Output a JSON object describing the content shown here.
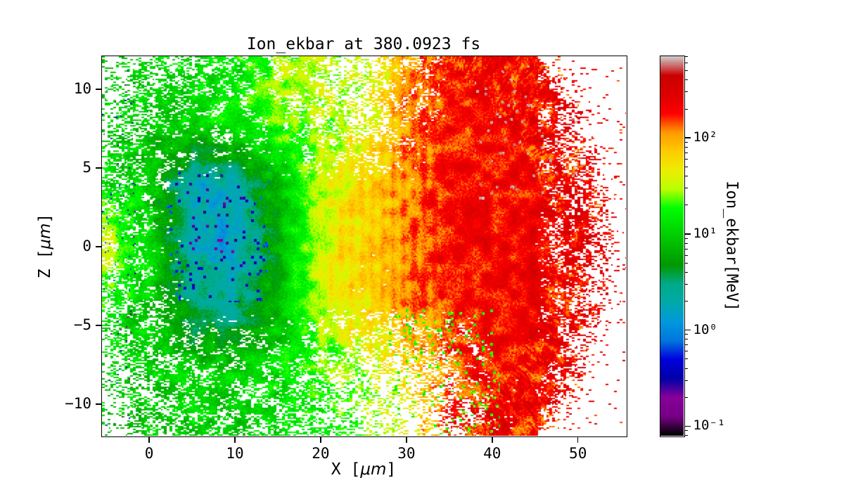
{
  "labels": {
    "xlabel_pre": "X [",
    "xlabel_unit": "μm",
    "xlabel_post": "]",
    "ylabel_pre": "Z [",
    "ylabel_unit": "μm",
    "ylabel_post": "]"
  },
  "chart_data": {
    "type": "heatmap",
    "title": "Ion_ekbar at 380.0923 fs",
    "xlabel": "X [μm]",
    "ylabel": "Z [μm]",
    "x_range": [
      -5.5,
      55.6
    ],
    "z_range": [
      -12.0,
      12.1
    ],
    "x_ticks": [
      0,
      10,
      20,
      30,
      40,
      50
    ],
    "x_tick_labels": [
      "0",
      "10",
      "20",
      "30",
      "40",
      "50"
    ],
    "z_ticks": [
      10,
      5,
      0,
      -5,
      -10
    ],
    "z_tick_labels": [
      "10",
      "5",
      "0",
      "−5",
      "−10"
    ],
    "grid_on": false,
    "colorbar": {
      "label": "Ion_ekbar[MeV]",
      "scale": "log",
      "vlog_min": -1.1,
      "vlog_max": 2.85,
      "major_ticks": [
        {
          "logv": 2,
          "label": "10²"
        },
        {
          "logv": 1,
          "label": "10¹"
        },
        {
          "logv": 0,
          "label": "10⁰"
        },
        {
          "logv": -1,
          "label": "10⁻¹"
        }
      ],
      "colormap": "nipy_spectral",
      "stops": [
        [
          0.0,
          0.0,
          0.0,
          0.0
        ],
        [
          0.05,
          0.4667,
          0.0,
          0.5333
        ],
        [
          0.1,
          0.5333,
          0.0,
          0.6
        ],
        [
          0.15,
          0.0,
          0.0,
          0.6667
        ],
        [
          0.2,
          0.0,
          0.0,
          0.8667
        ],
        [
          0.25,
          0.0,
          0.4667,
          0.8667
        ],
        [
          0.3,
          0.0,
          0.6,
          0.8667
        ],
        [
          0.35,
          0.0,
          0.6667,
          0.6667
        ],
        [
          0.4,
          0.0,
          0.6667,
          0.5333
        ],
        [
          0.45,
          0.0,
          0.6,
          0.0
        ],
        [
          0.5,
          0.0,
          0.7333,
          0.0
        ],
        [
          0.55,
          0.0,
          0.8667,
          0.0
        ],
        [
          0.6,
          0.0,
          1.0,
          0.0
        ],
        [
          0.65,
          0.7333,
          1.0,
          0.0
        ],
        [
          0.7,
          0.9333,
          0.9333,
          0.0
        ],
        [
          0.75,
          1.0,
          0.8,
          0.0
        ],
        [
          0.8,
          1.0,
          0.6,
          0.0
        ],
        [
          0.85,
          1.0,
          0.0,
          0.0
        ],
        [
          0.9,
          0.8667,
          0.0,
          0.0
        ],
        [
          0.95,
          0.8,
          0.0,
          0.0
        ],
        [
          1.0,
          0.8,
          0.8,
          0.8
        ]
      ]
    },
    "field": {
      "x_nodes": [
        -5,
        0,
        5,
        10,
        15,
        20,
        25,
        30,
        35,
        40,
        45,
        50,
        55
      ],
      "z_nodes": [
        12,
        8,
        4,
        0,
        -4,
        -8,
        -12
      ],
      "log10_mev": [
        [
          1.0,
          1.05,
          1.1,
          1.2,
          1.45,
          1.5,
          1.45,
          2.0,
          2.28,
          2.3,
          2.3,
          2.3,
          2.3
        ],
        [
          0.95,
          1.0,
          1.05,
          1.15,
          1.35,
          1.45,
          1.6,
          2.05,
          2.28,
          2.3,
          2.3,
          2.32,
          2.32
        ],
        [
          1.1,
          0.95,
          0.25,
          0.3,
          0.9,
          1.55,
          1.75,
          2.05,
          2.28,
          2.3,
          2.32,
          2.34,
          2.34
        ],
        [
          1.6,
          1.1,
          0.3,
          0.15,
          0.8,
          1.6,
          1.8,
          2.1,
          2.3,
          2.32,
          2.35,
          2.38,
          2.38
        ],
        [
          1.15,
          1.0,
          0.55,
          0.45,
          0.85,
          1.5,
          1.7,
          2.0,
          2.27,
          2.3,
          2.32,
          2.34,
          2.34
        ],
        [
          0.95,
          1.0,
          1.05,
          1.05,
          1.1,
          1.3,
          1.5,
          1.75,
          2.15,
          2.3,
          2.3,
          2.3,
          2.3
        ],
        [
          0.9,
          0.95,
          1.0,
          1.0,
          1.05,
          1.2,
          1.35,
          1.6,
          2.2,
          2.3,
          2.3,
          2.3,
          2.3
        ]
      ],
      "coverage": [
        [
          0.15,
          0.45,
          0.6,
          0.75,
          0.8,
          0.55,
          0.35,
          0.75,
          1,
          1,
          1,
          0.35,
          0.05
        ],
        [
          0.3,
          0.6,
          0.85,
          0.9,
          0.9,
          0.65,
          0.5,
          0.9,
          1,
          1,
          1,
          0.4,
          0.05
        ],
        [
          0.55,
          0.9,
          1,
          1,
          1,
          1,
          1,
          1,
          1,
          1,
          1,
          0.6,
          0.06
        ],
        [
          0.7,
          0.95,
          1,
          1,
          1,
          1,
          1,
          1,
          1,
          1,
          1,
          0.75,
          0.08
        ],
        [
          0.55,
          0.9,
          1,
          1,
          1,
          1,
          0.95,
          1,
          1,
          1,
          1,
          0.6,
          0.06
        ],
        [
          0.25,
          0.55,
          0.8,
          0.85,
          0.8,
          0.55,
          0.4,
          0.4,
          0.6,
          1,
          1,
          0.35,
          0.04
        ],
        [
          0.15,
          0.45,
          0.65,
          0.7,
          0.65,
          0.45,
          0.3,
          0.3,
          0.45,
          0.95,
          1,
          0.3,
          0.03
        ]
      ],
      "front_ellipse": {
        "cx": 30,
        "cz": 0,
        "rx": 23,
        "rz": 16
      }
    }
  }
}
